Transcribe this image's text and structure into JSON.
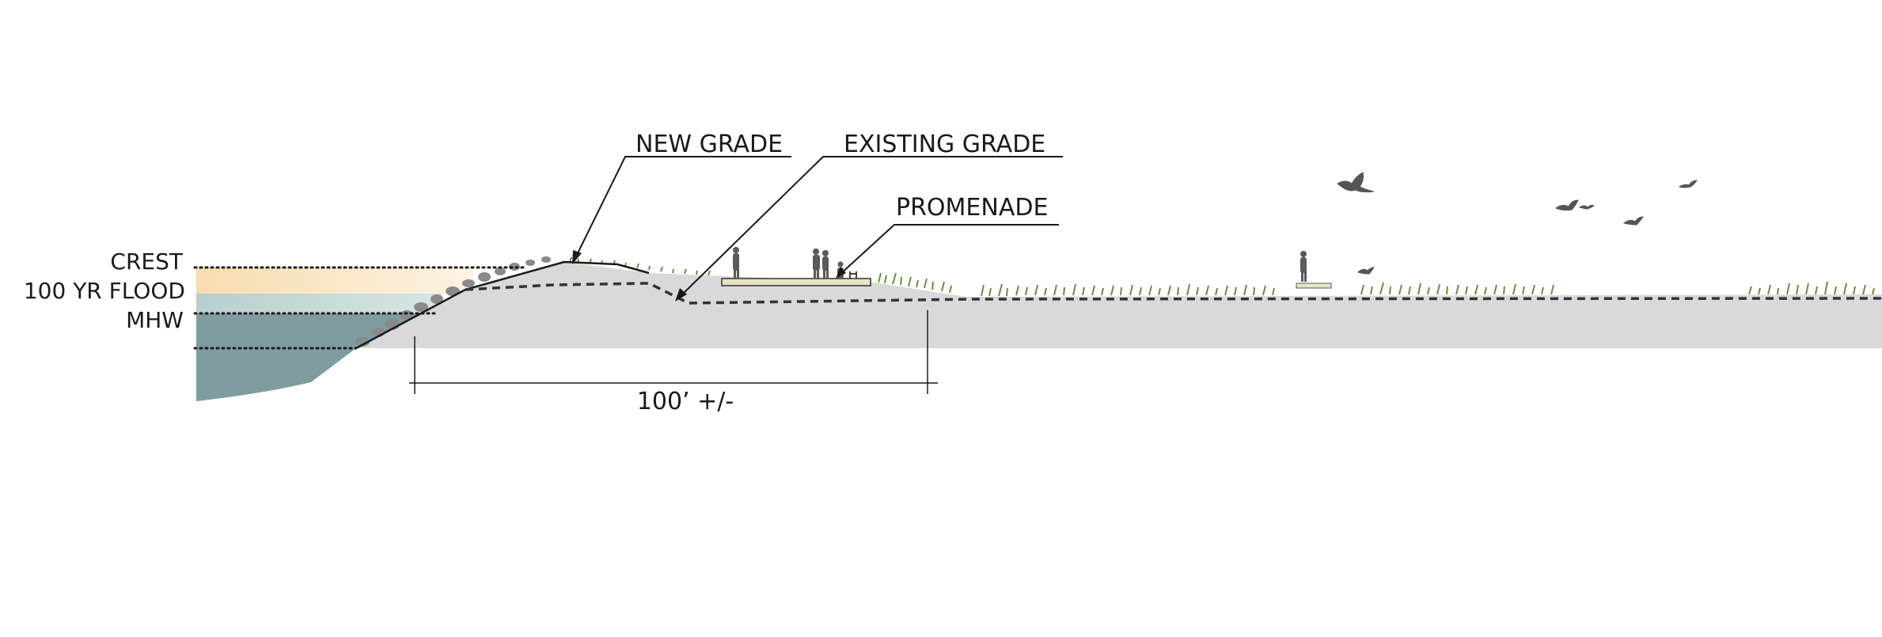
{
  "labels": {
    "crest": "CREST",
    "flood": "100 YR FLOOD",
    "mhw": "MHW",
    "new_grade": "NEW GRADE",
    "existing_grade": "EXISTING GRADE",
    "promenade": "PROMENADE",
    "dimension": "100’ +/-"
  },
  "colors": {
    "ground": "#d9d9d9",
    "water_deep": "#7f9da0",
    "water_flood": "#bcd2cf",
    "sky_band": "#f7dfb8",
    "promenade": "#e8e3c8",
    "vegetation": "#6b8f3a",
    "lines": "#1a1a1a",
    "figures": "#5a5a5a"
  }
}
